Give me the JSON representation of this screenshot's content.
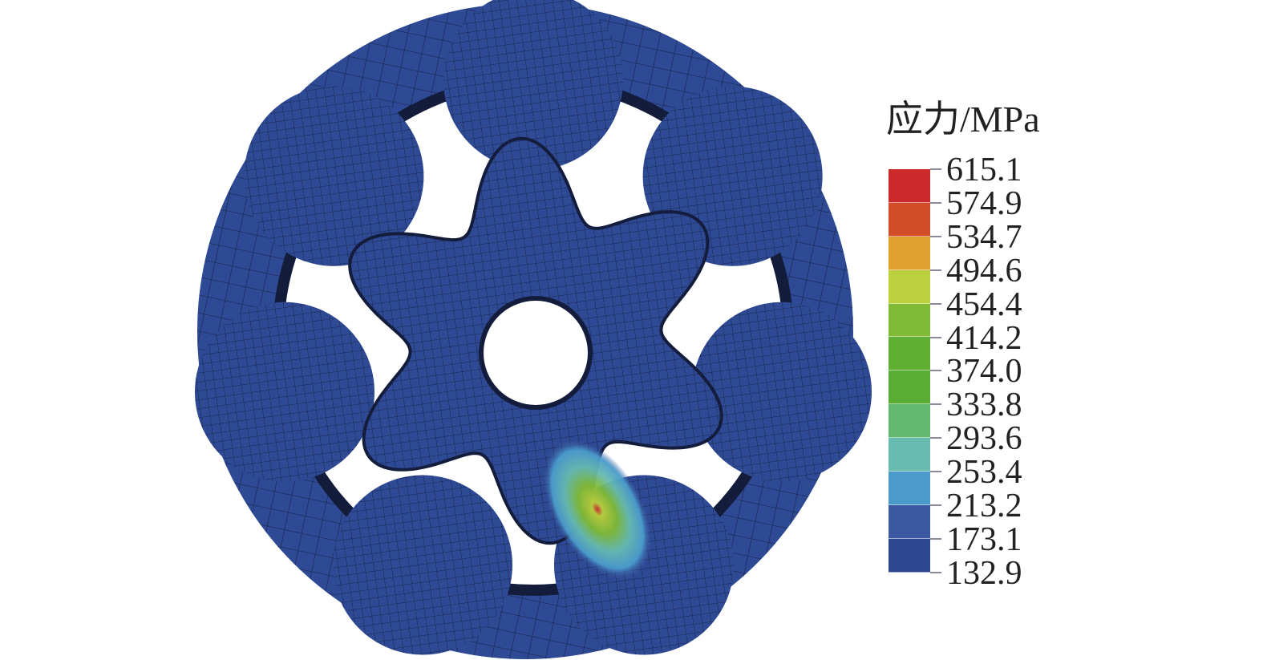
{
  "legend": {
    "title": "应力/MPa",
    "labels": [
      "615.1",
      "574.9",
      "534.7",
      "494.6",
      "454.4",
      "414.2",
      "374.0",
      "333.8",
      "293.6",
      "253.4",
      "213.2",
      "173.1",
      "132.9"
    ],
    "band_colors": [
      "#cc2a2a",
      "#d24e28",
      "#e0a030",
      "#bccf3c",
      "#80bb35",
      "#5faf34",
      "#5aae35",
      "#63b870",
      "#67bbb0",
      "#4a9bcc",
      "#3a57a0",
      "#2e4790"
    ]
  },
  "model": {
    "base_color": "#2f4a94",
    "mesh_color": "#1a2550",
    "hotspot_colors": [
      "#cc2a2a",
      "#bccf3c",
      "#80bb35",
      "#67bbb0",
      "#4a9bcc"
    ]
  }
}
